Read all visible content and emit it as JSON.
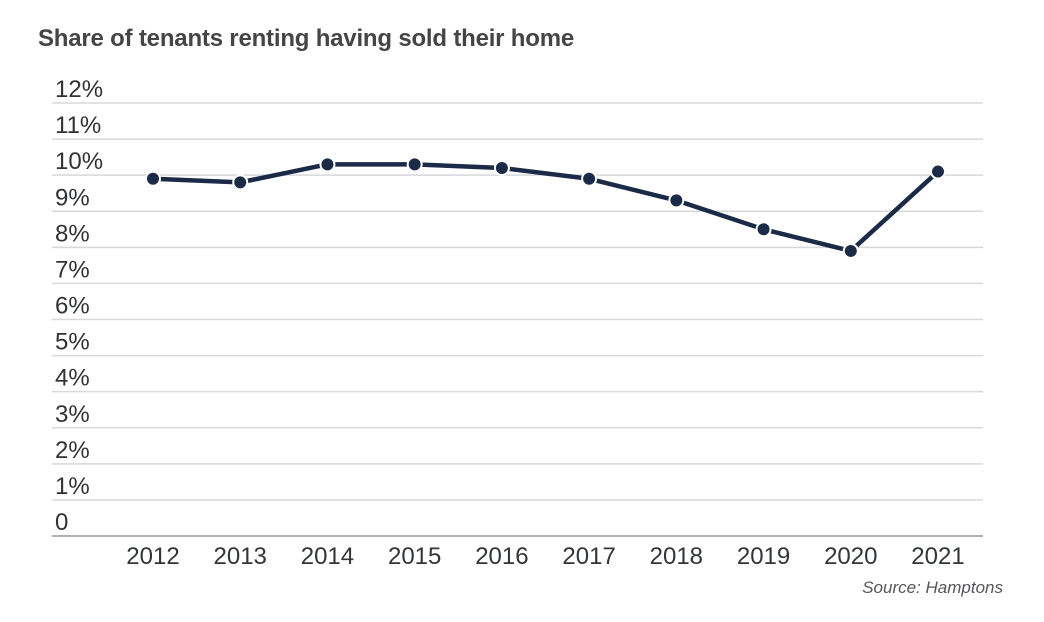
{
  "title": "Share of tenants renting having sold their home",
  "source_note": "Source: Hamptons",
  "colors": {
    "background": "#ffffff",
    "line": "#1a2a47",
    "marker_fill": "#1a2a47",
    "marker_halo": "#ffffff",
    "gridline": "#d7d8d9",
    "zero_axis_line": "#aeb0b3",
    "title_text": "#454545",
    "axis_text": "#303236",
    "source_text": "#55565a"
  },
  "chart_data": {
    "type": "line",
    "title": "Share of tenants renting having sold their home",
    "x": [
      "2012",
      "2013",
      "2014",
      "2015",
      "2016",
      "2017",
      "2018",
      "2019",
      "2020",
      "2021"
    ],
    "series": [
      {
        "name": "Share of tenants renting having sold their home",
        "values": [
          9.9,
          9.8,
          10.3,
          10.3,
          10.2,
          9.9,
          9.3,
          8.5,
          7.9,
          10.1
        ]
      }
    ],
    "xlabel": "",
    "ylabel": "",
    "ylim": [
      0,
      12
    ],
    "ytick_step": 1,
    "ytick_labels": [
      "0",
      "1%",
      "2%",
      "3%",
      "4%",
      "5%",
      "6%",
      "7%",
      "8%",
      "9%",
      "10%",
      "11%",
      "12%"
    ],
    "grid": "horizontal",
    "legend_position": "none",
    "annotations": [
      "Source: Hamptons"
    ]
  }
}
